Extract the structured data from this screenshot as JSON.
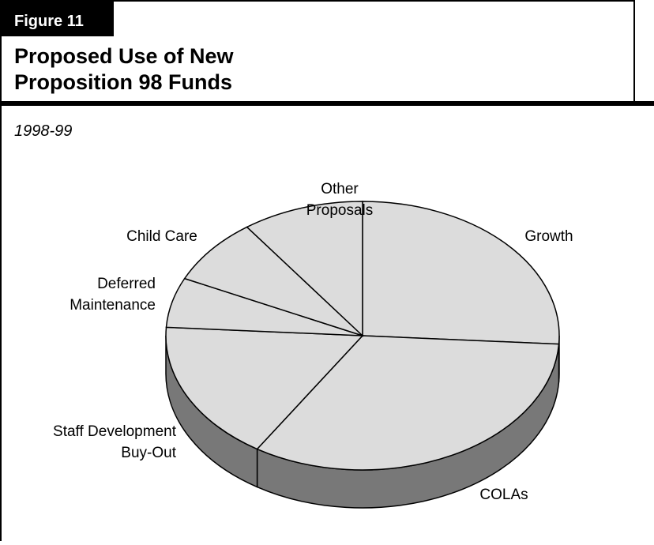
{
  "chart_data": {
    "type": "pie3d",
    "figure_label": "Figure 11",
    "title": "Proposed Use of New\nProposition 98 Funds",
    "subtitle": "1998-99",
    "categories": [
      "Growth",
      "COLAs",
      "Staff Development\nBuy-Out",
      "Deferred\nMaintenance",
      "Child Care",
      "Other\nProposals"
    ],
    "values": [
      26,
      33,
      17,
      6,
      8,
      10
    ],
    "color": "#dcdcdc",
    "side_color": "#787878"
  }
}
